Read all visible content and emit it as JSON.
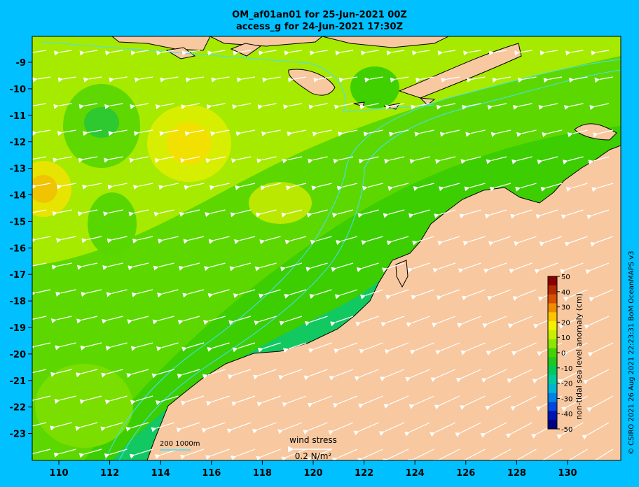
{
  "title_line1": "OM_af01an01 for 25-Jun-2021 00Z",
  "title_line2": "access_g for 24-Jun-2021 17:30Z",
  "credit": "© CSIRO 2021  26 Aug 2021 22:23:31 BoM OceanMAPS v3",
  "lon_labels": [
    "110",
    "112",
    "114",
    "116",
    "118",
    "120",
    "122",
    "124",
    "126",
    "128",
    "130"
  ],
  "lat_labels": [
    "-9",
    "-10",
    "-11",
    "-12",
    "-13",
    "-14",
    "-15",
    "-16",
    "-17",
    "-18",
    "-19",
    "-20",
    "-21",
    "-22",
    "-23"
  ],
  "colorbar": {
    "title": "non-tidal sea level anomaly (cm)",
    "ticks": [
      "50",
      "40",
      "30",
      "20",
      "10",
      "0",
      "-10",
      "-20",
      "-30",
      "-40",
      "-50"
    ],
    "colors": [
      "#8b0000",
      "#b22a00",
      "#d95000",
      "#f08c00",
      "#ffc400",
      "#f2f200",
      "#c8ef00",
      "#8ce600",
      "#46d200",
      "#1ec81e",
      "#00c85a",
      "#00c8a0",
      "#00b4d2",
      "#0082e6",
      "#0046dc",
      "#0014b4",
      "#000080"
    ]
  },
  "legend": {
    "isobath_label": "200  1000m",
    "wind_label": "wind stress",
    "wind_scale": "0.2 N/m²"
  }
}
